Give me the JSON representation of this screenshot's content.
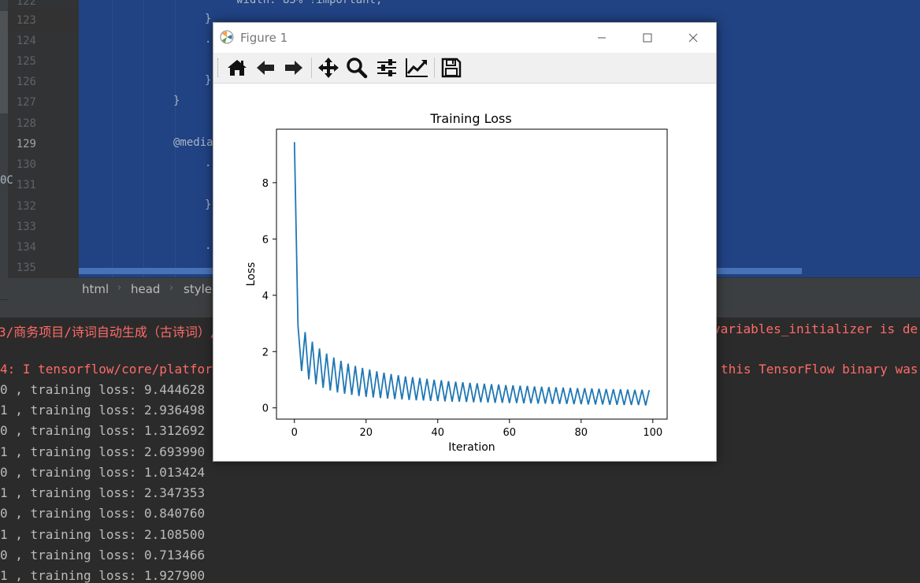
{
  "editor": {
    "line_numbers": [
      "122",
      "123",
      "124",
      "125",
      "126",
      "127",
      "128",
      "129",
      "130",
      "131",
      "132",
      "133",
      "134",
      "135"
    ],
    "current_line": "129",
    "code_lines": [
      {
        "text": "width: 85% !important;",
        "indent": 4
      },
      {
        "text": "}",
        "indent": 3
      },
      {
        "text": ".",
        "indent": 3
      },
      {
        "text": "}",
        "indent": 3
      },
      {
        "text": "}",
        "indent": 2
      },
      {
        "text": "@media",
        "indent": 2
      },
      {
        "text": ".",
        "indent": 3
      },
      {
        "text": "}",
        "indent": 3
      },
      {
        "text": ".",
        "indent": 3
      }
    ],
    "left_cut_text": "0C"
  },
  "breadcrumb": [
    "html",
    "head",
    "style"
  ],
  "console": {
    "error_line_1": "3/商务项目/诗词自动生成（古诗词）/",
    "error_line_1_right": "variables_initializer is de",
    "error_line_2": "4: I tensorflow/core/platfor",
    "error_line_2_right": "this TensorFlow binary was",
    "output_lines": [
      "0 , training loss: 9.444628",
      "1 , training loss: 2.936498",
      "0 , training loss: 1.312692",
      "1 , training loss: 2.693990",
      "0 , training loss: 1.013424",
      "1 , training loss: 2.347353",
      "0 , training loss: 0.840760",
      "1 , training loss: 2.108500",
      "0 , training loss: 0.713466",
      "1 , training loss: 1.927900"
    ]
  },
  "figure": {
    "window_title": "Figure 1",
    "toolbar": [
      {
        "name": "home-icon"
      },
      {
        "name": "back-arrow-icon"
      },
      {
        "name": "forward-arrow-icon"
      },
      {
        "name": "pan-move-icon"
      },
      {
        "name": "zoom-magnifier-icon"
      },
      {
        "name": "configure-subplots-icon"
      },
      {
        "name": "edit-axis-icon"
      },
      {
        "name": "save-floppy-icon"
      }
    ],
    "line_color": "#1f77b4"
  },
  "chart_data": {
    "type": "line",
    "title": "Training Loss",
    "xlabel": "Iteration",
    "ylabel": "Loss",
    "xlim": [
      -5,
      104
    ],
    "ylim": [
      -0.4,
      9.9
    ],
    "xticks": [
      0,
      20,
      40,
      60,
      80,
      100
    ],
    "yticks": [
      0,
      2,
      4,
      6,
      8
    ],
    "grid": false,
    "legend": "none",
    "series": [
      {
        "x": [
          0,
          1,
          2,
          3,
          4,
          5,
          6,
          7,
          8,
          9,
          10,
          11,
          12,
          13,
          14,
          15,
          16,
          17,
          18,
          19,
          20,
          21,
          22,
          23,
          24,
          25,
          26,
          27,
          28,
          29,
          30,
          31,
          32,
          33,
          34,
          35,
          36,
          37,
          38,
          39,
          40,
          41,
          42,
          43,
          44,
          45,
          46,
          47,
          48,
          49,
          50,
          51,
          52,
          53,
          54,
          55,
          56,
          57,
          58,
          59,
          60,
          61,
          62,
          63,
          64,
          65,
          66,
          67,
          68,
          69,
          70,
          71,
          72,
          73,
          74,
          75,
          76,
          77,
          78,
          79,
          80,
          81,
          82,
          83,
          84,
          85,
          86,
          87,
          88,
          89,
          90,
          91,
          92,
          93,
          94,
          95,
          96,
          97,
          98,
          99
        ],
        "values": [
          9.44,
          2.94,
          1.31,
          2.69,
          1.01,
          2.35,
          0.84,
          2.11,
          0.71,
          1.93,
          0.62,
          1.79,
          0.55,
          1.67,
          0.5,
          1.57,
          0.46,
          1.49,
          0.42,
          1.42,
          0.39,
          1.36,
          0.37,
          1.3,
          0.35,
          1.25,
          0.33,
          1.2,
          0.31,
          1.16,
          0.3,
          1.12,
          0.28,
          1.09,
          0.27,
          1.06,
          0.26,
          1.03,
          0.25,
          1.0,
          0.24,
          0.98,
          0.23,
          0.95,
          0.22,
          0.93,
          0.22,
          0.91,
          0.21,
          0.89,
          0.2,
          0.87,
          0.2,
          0.86,
          0.19,
          0.84,
          0.18,
          0.83,
          0.18,
          0.81,
          0.17,
          0.8,
          0.17,
          0.79,
          0.16,
          0.78,
          0.16,
          0.76,
          0.15,
          0.75,
          0.15,
          0.74,
          0.14,
          0.73,
          0.14,
          0.72,
          0.14,
          0.71,
          0.13,
          0.7,
          0.13,
          0.7,
          0.12,
          0.69,
          0.12,
          0.68,
          0.12,
          0.67,
          0.11,
          0.66,
          0.11,
          0.66,
          0.1,
          0.65,
          0.1,
          0.64,
          0.1,
          0.64,
          0.09,
          0.63
        ]
      }
    ]
  }
}
